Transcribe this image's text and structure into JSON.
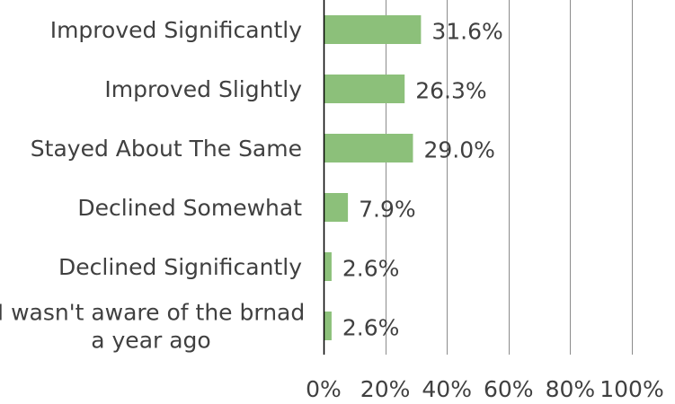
{
  "chart_data": {
    "type": "bar",
    "orientation": "horizontal",
    "categories": [
      [
        "Improved Significantly"
      ],
      [
        "Improved Slightly"
      ],
      [
        "Stayed About The Same"
      ],
      [
        "Declined Somewhat"
      ],
      [
        "Declined Significantly"
      ],
      [
        "I wasn't aware of the brnad",
        "a year ago"
      ]
    ],
    "values": [
      31.6,
      26.3,
      29.0,
      7.9,
      2.6,
      2.6
    ],
    "data_labels": [
      "31.6%",
      "26.3%",
      "29.0%",
      "7.9%",
      "2.6%",
      "2.6%"
    ],
    "xlim": [
      0,
      100
    ],
    "xticks": [
      0,
      20,
      40,
      60,
      80,
      100
    ],
    "xtick_labels": [
      "0%",
      "20%",
      "40%",
      "60%",
      "80%",
      "100%"
    ],
    "grid": "vertical",
    "legend": "none",
    "bar_color": "#8cc07a",
    "grid_color": "#8c8c8c",
    "axis_color": "#000000"
  }
}
